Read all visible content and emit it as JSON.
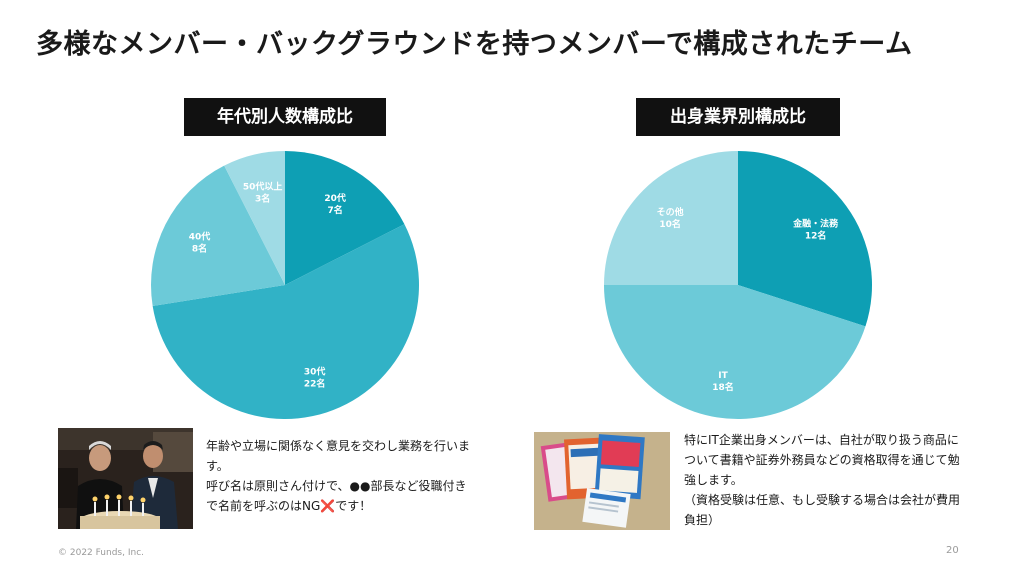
{
  "title": "多様なメンバー・バックグラウンドを持つメンバーで構成されたチーム",
  "age_chart": {
    "label": "年代別人数構成比",
    "slices": [
      {
        "line1": "20代",
        "line2": "7名",
        "value": 7,
        "color": "#0e9fb4"
      },
      {
        "line1": "30代",
        "line2": "22名",
        "value": 22,
        "color": "#31b2c6"
      },
      {
        "line1": "40代",
        "line2": "8名",
        "value": 8,
        "color": "#6ccad8"
      },
      {
        "line1": "50代以上",
        "line2": "3名",
        "value": 3,
        "color": "#9fdbe5"
      }
    ]
  },
  "industry_chart": {
    "label": "出身業界別構成比",
    "slices": [
      {
        "line1": "金融・法務",
        "line2": "12名",
        "value": 12,
        "color": "#0e9fb4"
      },
      {
        "line1": "IT",
        "line2": "18名",
        "value": 18,
        "color": "#6ccad8"
      },
      {
        "line1": "その他",
        "line2": "10名",
        "value": 10,
        "color": "#9fdbe5"
      }
    ]
  },
  "chart_data": [
    {
      "type": "pie",
      "title": "年代別人数構成比",
      "categories": [
        "20代",
        "30代",
        "40代",
        "50代以上"
      ],
      "values": [
        7,
        22,
        8,
        3
      ]
    },
    {
      "type": "pie",
      "title": "出身業界別構成比",
      "categories": [
        "金融・法務",
        "IT",
        "その他"
      ],
      "values": [
        12,
        18,
        10
      ]
    }
  ],
  "left_text": {
    "p1": "年齢や立場に関係なく意見を交わし業務を行います。",
    "p2_before": "呼び名は原則さん付けで、●●部長など役職付きで名前を呼ぶのはNG",
    "p2_mark": "❌",
    "p2_after": "です！"
  },
  "right_text": {
    "p1": "特にIT企業出身メンバーは、自社が取り扱う商品について書籍や証券外務員などの資格取得を通じて勉強します。",
    "p2": "（資格受験は任意、もし受験する場合は会社が費用負担）"
  },
  "footer": {
    "copyright": "© 2022 Funds, Inc.",
    "page_number": "20"
  }
}
